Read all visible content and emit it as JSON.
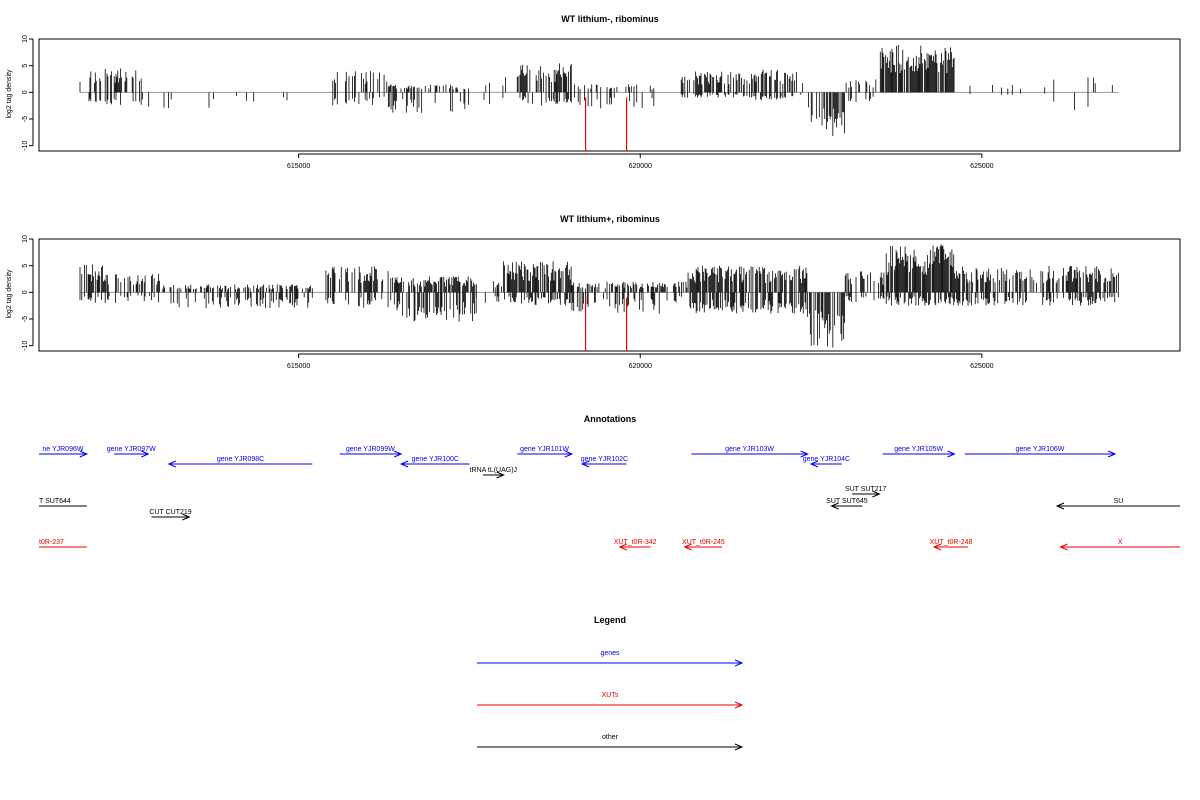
{
  "chart_data": [
    {
      "type": "bar",
      "title": "WT lithium-, ribominus",
      "ylabel": "log2 tag density",
      "xlim": [
        611200,
        627900
      ],
      "ylim": [
        -11,
        10
      ],
      "x_ticks": [
        615000,
        620000,
        625000
      ],
      "x_tick_labels": [
        "615000",
        "620000",
        "625000"
      ],
      "y_ticks": [
        10,
        5,
        0,
        -5,
        -10
      ],
      "y_tick_labels": [
        "10",
        "5",
        "0",
        "-5",
        "-10"
      ],
      "grid": false,
      "markers": [
        619200,
        619800
      ],
      "marker_color": "#ee0000",
      "bar_color": "#000000",
      "baseline_color": "#999999",
      "segments": [
        {
          "start": 611800,
          "end": 612700,
          "pos_max": 4.5,
          "neg_max": 2.5,
          "density": 0.5
        },
        {
          "start": 612700,
          "end": 614000,
          "pos_max": 0,
          "neg_max": 3,
          "density": 0.15
        },
        {
          "start": 614000,
          "end": 615000,
          "pos_max": 0,
          "neg_max": 2,
          "density": 0.05
        },
        {
          "start": 615500,
          "end": 616300,
          "pos_max": 4,
          "neg_max": 2.5,
          "density": 0.35
        },
        {
          "start": 616300,
          "end": 617500,
          "pos_max": 1.5,
          "neg_max": 4,
          "density": 0.5
        },
        {
          "start": 617700,
          "end": 618200,
          "pos_max": 3,
          "neg_max": 2.5,
          "density": 0.2
        },
        {
          "start": 618200,
          "end": 619000,
          "pos_max": 5.5,
          "neg_max": 2.5,
          "density": 0.7
        },
        {
          "start": 619000,
          "end": 620200,
          "pos_max": 1.5,
          "neg_max": 3,
          "density": 0.3
        },
        {
          "start": 620600,
          "end": 621600,
          "pos_max": 4,
          "neg_max": 1,
          "density": 0.6
        },
        {
          "start": 621600,
          "end": 622400,
          "pos_max": 4.5,
          "neg_max": 1.5,
          "density": 0.6
        },
        {
          "start": 622450,
          "end": 623000,
          "pos_max": 0,
          "neg_max": 8.5,
          "density": 1.0
        },
        {
          "start": 623000,
          "end": 623500,
          "pos_max": 2.5,
          "neg_max": 2,
          "density": 0.25
        },
        {
          "start": 623500,
          "end": 624600,
          "pos_max": 9,
          "neg_max": 0,
          "density": 1.0
        },
        {
          "start": 624800,
          "end": 626000,
          "pos_max": 1.5,
          "neg_max": 0.5,
          "density": 0.1
        },
        {
          "start": 626000,
          "end": 627000,
          "pos_max": 3.5,
          "neg_max": 3.5,
          "density": 0.2
        }
      ]
    },
    {
      "type": "bar",
      "title": "WT lithium+, ribominus",
      "ylabel": "log2 tag density",
      "xlim": [
        611200,
        627900
      ],
      "ylim": [
        -11,
        10
      ],
      "x_ticks": [
        615000,
        620000,
        625000
      ],
      "x_tick_labels": [
        "615000",
        "620000",
        "625000"
      ],
      "y_ticks": [
        10,
        5,
        0,
        -5,
        -10
      ],
      "y_tick_labels": [
        "10",
        "5",
        "0",
        "-5",
        "-10"
      ],
      "grid": false,
      "markers": [
        619200,
        619800
      ],
      "marker_color": "#ee0000",
      "bar_color": "#000000",
      "baseline_color": "#999999",
      "segments": [
        {
          "start": 611800,
          "end": 612200,
          "pos_max": 5.5,
          "neg_max": 2,
          "density": 0.6
        },
        {
          "start": 612200,
          "end": 613000,
          "pos_max": 3.5,
          "neg_max": 2,
          "density": 0.55
        },
        {
          "start": 613000,
          "end": 615200,
          "pos_max": 1.5,
          "neg_max": 3,
          "density": 0.5
        },
        {
          "start": 615400,
          "end": 616400,
          "pos_max": 5,
          "neg_max": 3,
          "density": 0.7
        },
        {
          "start": 616400,
          "end": 617600,
          "pos_max": 3,
          "neg_max": 5.5,
          "density": 0.8
        },
        {
          "start": 617600,
          "end": 618000,
          "pos_max": 2.5,
          "neg_max": 2,
          "density": 0.3
        },
        {
          "start": 618000,
          "end": 619000,
          "pos_max": 6,
          "neg_max": 2.5,
          "density": 0.9
        },
        {
          "start": 619000,
          "end": 620300,
          "pos_max": 2,
          "neg_max": 4,
          "density": 0.55
        },
        {
          "start": 620300,
          "end": 620700,
          "pos_max": 2,
          "neg_max": 2,
          "density": 0.4
        },
        {
          "start": 620700,
          "end": 622450,
          "pos_max": 5,
          "neg_max": 4,
          "density": 0.85
        },
        {
          "start": 622450,
          "end": 623000,
          "pos_max": 0,
          "neg_max": 10.5,
          "density": 1.0
        },
        {
          "start": 623000,
          "end": 623600,
          "pos_max": 4,
          "neg_max": 2,
          "density": 0.5
        },
        {
          "start": 623600,
          "end": 624600,
          "pos_max": 9,
          "neg_max": 2.5,
          "density": 1.0
        },
        {
          "start": 624600,
          "end": 627000,
          "pos_max": 5,
          "neg_max": 2.5,
          "density": 0.7
        }
      ]
    }
  ],
  "annotations": {
    "title": "Annotations",
    "xlim": [
      611200,
      627900
    ],
    "features": [
      {
        "label": "ne YJR096W",
        "color": "#0000ee",
        "start": 611200,
        "end": 611900,
        "strand": "+",
        "row": 0
      },
      {
        "label": "gene YJR097W",
        "color": "#0000ee",
        "start": 612300,
        "end": 612800,
        "strand": "+",
        "row": 0
      },
      {
        "label": "gene YJR098C",
        "color": "#0000ee",
        "start": 613100,
        "end": 615200,
        "strand": "-",
        "row": 1
      },
      {
        "label": "gene YJR099W",
        "color": "#0000ee",
        "start": 615600,
        "end": 616500,
        "strand": "+",
        "row": 0
      },
      {
        "label": "gene YJR100C",
        "color": "#0000ee",
        "start": 616500,
        "end": 617500,
        "strand": "-",
        "row": 1
      },
      {
        "label": "gene YJR101W",
        "color": "#0000ee",
        "start": 618200,
        "end": 619000,
        "strand": "+",
        "row": 0
      },
      {
        "label": "gene YJR102C",
        "color": "#0000ee",
        "start": 619150,
        "end": 619800,
        "strand": "-",
        "row": 1
      },
      {
        "label": "gene YJR103W",
        "color": "#0000ee",
        "start": 620750,
        "end": 622450,
        "strand": "+",
        "row": 0
      },
      {
        "label": "gene YJR104C",
        "color": "#0000ee",
        "start": 622500,
        "end": 622950,
        "strand": "-",
        "row": 1
      },
      {
        "label": "gene YJR105W",
        "color": "#0000ee",
        "start": 623550,
        "end": 624600,
        "strand": "+",
        "row": 0
      },
      {
        "label": "gene YJR106W",
        "color": "#0000ee",
        "start": 624750,
        "end": 626950,
        "strand": "+",
        "row": 0
      },
      {
        "label": "tRNA tL(UAG)J",
        "color": "#000000",
        "start": 617700,
        "end": 618000,
        "strand": "+",
        "row": 2
      },
      {
        "label": "T SUT644",
        "color": "#000000",
        "start": 611200,
        "end": 611900,
        "strand": "+",
        "row": 4,
        "no_arrow": true
      },
      {
        "label": "CUT CUT219",
        "color": "#000000",
        "start": 612850,
        "end": 613400,
        "strand": "+",
        "row": 5
      },
      {
        "label": "SUT SUT217",
        "color": "#000000",
        "start": 623100,
        "end": 623500,
        "strand": "+",
        "row": 3
      },
      {
        "label": "SUT SUT645",
        "color": "#000000",
        "start": 622800,
        "end": 623250,
        "strand": "-",
        "row": 4
      },
      {
        "label": "SU",
        "color": "#000000",
        "start": 626100,
        "end": 627900,
        "strand": "-",
        "row": 4
      },
      {
        "label": "t0R-237",
        "color": "#ee0000",
        "start": 611200,
        "end": 611900,
        "strand": "+",
        "row": 6,
        "no_arrow": true
      },
      {
        "label": "XUT_t0R-342",
        "color": "#ee0000",
        "start": 619700,
        "end": 620150,
        "strand": "-",
        "row": 6
      },
      {
        "label": "XUT_t0R-245",
        "color": "#ee0000",
        "start": 620650,
        "end": 621200,
        "strand": "-",
        "row": 6
      },
      {
        "label": "XUT_t0R-248",
        "color": "#ee0000",
        "start": 624300,
        "end": 624800,
        "strand": "-",
        "row": 6
      },
      {
        "label": "X",
        "color": "#ee0000",
        "start": 626150,
        "end": 627900,
        "strand": "-",
        "row": 6
      }
    ]
  },
  "legend": {
    "title": "Legend",
    "entries": [
      {
        "label": "genes",
        "color": "#0000ee"
      },
      {
        "label": "XUTs",
        "color": "#ee0000"
      },
      {
        "label": "other",
        "color": "#000000"
      }
    ]
  }
}
